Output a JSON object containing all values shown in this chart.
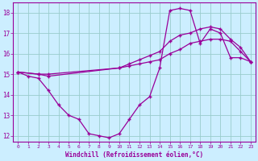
{
  "xlabel": "Windchill (Refroidissement éolien,°C)",
  "background_color": "#cceeff",
  "grid_color": "#99cccc",
  "line_color": "#990099",
  "xlim": [
    -0.5,
    23.5
  ],
  "ylim": [
    11.7,
    18.5
  ],
  "yticks": [
    12,
    13,
    14,
    15,
    16,
    17,
    18
  ],
  "xticks": [
    0,
    1,
    2,
    3,
    4,
    5,
    6,
    7,
    8,
    9,
    10,
    11,
    12,
    13,
    14,
    15,
    16,
    17,
    18,
    19,
    20,
    21,
    22,
    23
  ],
  "series": [
    {
      "x": [
        0,
        1,
        2,
        3,
        4,
        5,
        6,
        7,
        8,
        9,
        10,
        11,
        12,
        13,
        14,
        15,
        16,
        17,
        18,
        19,
        20,
        21,
        22,
        23
      ],
      "y": [
        15.1,
        14.9,
        14.8,
        14.2,
        13.5,
        13.0,
        12.8,
        12.1,
        12.0,
        11.9,
        12.1,
        12.8,
        13.5,
        13.9,
        15.3,
        18.1,
        18.2,
        18.1,
        16.5,
        17.2,
        17.0,
        15.8,
        15.8,
        15.6
      ]
    },
    {
      "x": [
        0,
        2,
        3,
        10,
        11,
        12,
        13,
        14,
        15,
        16,
        17,
        18,
        19,
        20,
        21,
        22,
        23
      ],
      "y": [
        15.1,
        15.0,
        14.9,
        15.3,
        15.5,
        15.7,
        15.9,
        16.1,
        16.6,
        16.9,
        17.0,
        17.2,
        17.3,
        17.2,
        16.7,
        16.3,
        15.6
      ]
    },
    {
      "x": [
        0,
        2,
        3,
        10,
        11,
        12,
        13,
        14,
        15,
        16,
        17,
        18,
        19,
        20,
        21,
        22,
        23
      ],
      "y": [
        15.1,
        15.0,
        15.0,
        15.3,
        15.4,
        15.5,
        15.6,
        15.7,
        16.0,
        16.2,
        16.5,
        16.6,
        16.7,
        16.7,
        16.6,
        16.1,
        15.6
      ]
    }
  ]
}
